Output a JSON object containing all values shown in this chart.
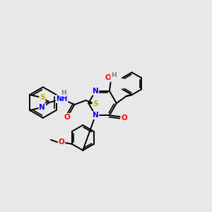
{
  "background_color": "#e8e8e8",
  "bond_color": "#000000",
  "atom_colors": {
    "N": "#0000ff",
    "O": "#ff0000",
    "S": "#ccaa00",
    "H": "#708090",
    "C": "#000000"
  },
  "figsize": [
    3.0,
    3.0
  ],
  "dpi": 100
}
